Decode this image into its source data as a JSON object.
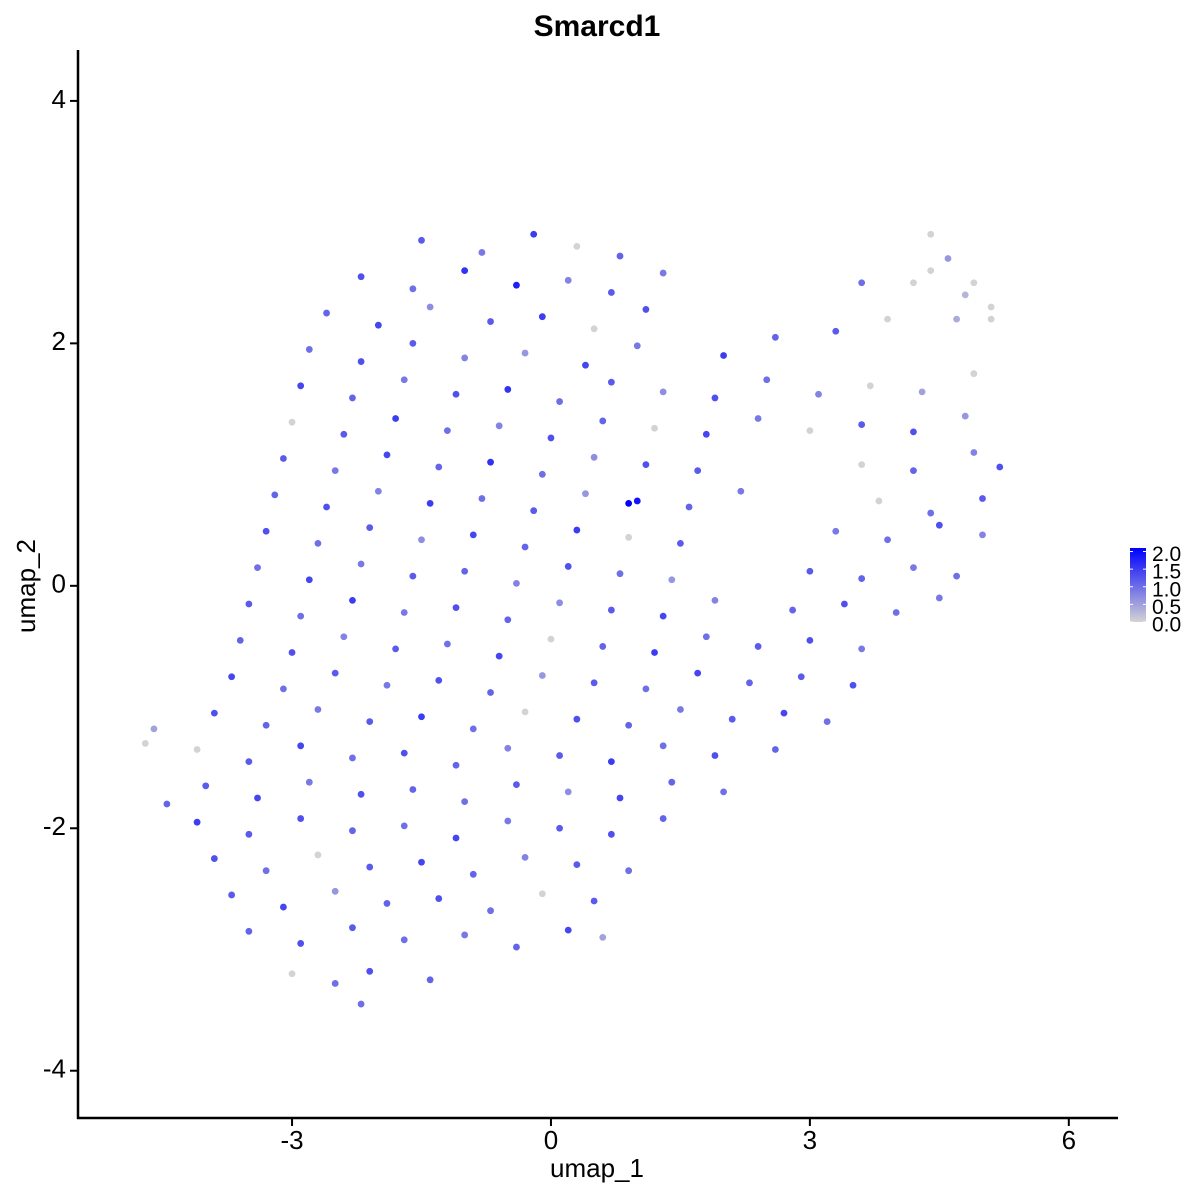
{
  "chart_data": {
    "type": "scatter",
    "title": "Smarcd1",
    "x_label": "umap_1",
    "y_label": "umap_2",
    "xlim": [
      -5.48,
      6.57
    ],
    "ylim": [
      -4.39,
      4.42
    ],
    "xticks": [
      -3,
      0,
      3,
      6
    ],
    "yticks": [
      -4,
      -2,
      0,
      2,
      4
    ],
    "color_range": [
      "#d3d3d3",
      "#0000ff"
    ],
    "colorlim": [
      0,
      2.1
    ],
    "colorbar_ticks": [
      {
        "value": 0,
        "label": "0.0"
      },
      {
        "value": 0.5,
        "label": "0.5"
      },
      {
        "value": 1,
        "label": "1.0"
      },
      {
        "value": 1.5,
        "label": "1.5"
      },
      {
        "value": 2,
        "label": "2.0"
      }
    ],
    "grid": false,
    "x": [
      -1.5,
      -0.8,
      -0.2,
      0.3,
      0.8,
      -2.2,
      -1.6,
      -1.0,
      -0.4,
      0.2,
      0.7,
      1.3,
      -2.6,
      -2.0,
      -1.4,
      -0.7,
      -0.1,
      0.5,
      1.1,
      -2.8,
      -2.2,
      -1.6,
      -1.0,
      -0.3,
      0.4,
      1.0,
      2.0,
      2.6,
      3.3,
      3.9,
      4.4,
      4.8,
      5.1,
      4.4,
      4.6,
      4.9,
      4.2,
      5.1,
      4.7,
      3.6,
      -2.9,
      -2.3,
      -1.7,
      -1.1,
      -0.5,
      0.1,
      0.7,
      1.3,
      1.9,
      2.5,
      3.1,
      3.7,
      4.3,
      4.9,
      -3.0,
      -2.4,
      -1.8,
      -1.2,
      -0.6,
      0.0,
      0.6,
      1.2,
      1.8,
      2.4,
      3.0,
      3.6,
      4.2,
      4.8,
      -3.1,
      -2.5,
      -1.9,
      -1.3,
      -0.7,
      -0.1,
      0.5,
      1.1,
      1.7,
      3.6,
      4.2,
      4.9,
      5.2,
      -3.2,
      -2.6,
      -2.0,
      -1.4,
      -0.8,
      -0.2,
      0.4,
      1.0,
      1.6,
      2.2,
      3.8,
      4.4,
      5.0,
      -3.3,
      -2.7,
      -2.1,
      -1.5,
      -0.9,
      -0.3,
      0.3,
      0.9,
      1.5,
      3.3,
      3.9,
      4.5,
      5.0,
      -3.4,
      -2.8,
      -2.2,
      -1.6,
      -1.0,
      -0.4,
      0.2,
      0.8,
      1.4,
      3.0,
      3.6,
      4.2,
      4.7,
      -3.5,
      -2.9,
      -2.3,
      -1.7,
      -1.1,
      -0.5,
      0.1,
      0.7,
      1.3,
      1.9,
      2.8,
      3.4,
      4.0,
      4.5,
      -3.6,
      -3.0,
      -2.4,
      -1.8,
      -1.2,
      -0.6,
      0.0,
      0.6,
      1.2,
      1.8,
      2.4,
      3.0,
      3.6,
      -3.7,
      -3.1,
      -2.5,
      -1.9,
      -1.3,
      -0.7,
      -0.1,
      0.5,
      1.1,
      1.7,
      2.3,
      2.9,
      3.5,
      -3.9,
      -3.3,
      -2.7,
      -2.1,
      -1.5,
      -0.9,
      -0.3,
      0.3,
      0.9,
      1.5,
      2.1,
      2.7,
      3.2,
      -4.1,
      -3.5,
      -2.9,
      -2.3,
      -1.7,
      -1.1,
      -0.5,
      0.1,
      0.7,
      1.3,
      1.9,
      2.6,
      -4.0,
      -3.4,
      -2.8,
      -2.2,
      -1.6,
      -1.0,
      -0.4,
      0.2,
      0.8,
      1.4,
      2.0,
      -4.1,
      -3.5,
      -2.9,
      -2.3,
      -1.7,
      -1.1,
      -0.5,
      0.1,
      0.7,
      1.3,
      -3.9,
      -3.3,
      -2.7,
      -2.1,
      -1.5,
      -0.9,
      -0.3,
      0.3,
      0.9,
      -3.7,
      -3.1,
      -2.5,
      -1.9,
      -1.3,
      -0.7,
      -0.1,
      0.5,
      -3.5,
      -2.9,
      -2.3,
      -1.7,
      -1.0,
      -0.4,
      0.2,
      0.6,
      -3.0,
      -2.5,
      -2.1,
      -1.4,
      -4.7,
      -4.6,
      -4.45,
      -2.2,
      0.9
    ],
    "values": [
      2.85,
      2.75,
      2.9,
      2.8,
      2.72,
      2.55,
      2.45,
      2.6,
      2.48,
      2.52,
      2.42,
      2.58,
      2.25,
      2.15,
      2.3,
      2.18,
      2.22,
      2.12,
      2.28,
      1.95,
      1.85,
      2.0,
      1.88,
      1.92,
      1.82,
      1.98,
      1.9,
      2.05,
      2.1,
      2.2,
      2.6,
      2.4,
      2.3,
      2.9,
      2.7,
      2.5,
      2.5,
      2.2,
      2.2,
      2.5,
      1.65,
      1.55,
      1.7,
      1.58,
      1.62,
      1.52,
      1.68,
      1.6,
      1.55,
      1.7,
      1.58,
      1.65,
      1.6,
      1.75,
      1.35,
      1.25,
      1.38,
      1.28,
      1.32,
      1.22,
      1.36,
      1.3,
      1.25,
      1.38,
      1.28,
      1.33,
      1.27,
      1.4,
      1.05,
      0.95,
      1.08,
      0.98,
      1.02,
      0.92,
      1.06,
      1.0,
      0.95,
      1.0,
      0.95,
      1.1,
      0.98,
      0.75,
      0.65,
      0.78,
      0.68,
      0.72,
      0.62,
      0.76,
      0.7,
      0.65,
      0.78,
      0.7,
      0.6,
      0.72,
      0.45,
      0.35,
      0.48,
      0.38,
      0.42,
      0.32,
      0.46,
      0.4,
      0.35,
      0.45,
      0.38,
      0.5,
      0.42,
      0.15,
      0.05,
      0.18,
      0.08,
      0.12,
      0.02,
      0.16,
      0.1,
      0.05,
      0.12,
      0.06,
      0.15,
      0.08,
      -0.15,
      -0.25,
      -0.12,
      -0.22,
      -0.18,
      -0.28,
      -0.14,
      -0.2,
      -0.25,
      -0.12,
      -0.2,
      -0.15,
      -0.22,
      -0.1,
      -0.45,
      -0.55,
      -0.42,
      -0.52,
      -0.48,
      -0.58,
      -0.44,
      -0.5,
      -0.55,
      -0.42,
      -0.5,
      -0.45,
      -0.52,
      -0.75,
      -0.85,
      -0.72,
      -0.82,
      -0.78,
      -0.88,
      -0.74,
      -0.8,
      -0.85,
      -0.72,
      -0.8,
      -0.75,
      -0.82,
      -1.05,
      -1.15,
      -1.02,
      -1.12,
      -1.08,
      -1.18,
      -1.04,
      -1.1,
      -1.15,
      -1.02,
      -1.1,
      -1.05,
      -1.12,
      -1.35,
      -1.45,
      -1.32,
      -1.42,
      -1.38,
      -1.48,
      -1.34,
      -1.4,
      -1.45,
      -1.32,
      -1.4,
      -1.35,
      -1.65,
      -1.75,
      -1.62,
      -1.72,
      -1.68,
      -1.78,
      -1.64,
      -1.7,
      -1.75,
      -1.62,
      -1.7,
      -1.95,
      -2.05,
      -1.92,
      -2.02,
      -1.98,
      -2.08,
      -1.94,
      -2.0,
      -2.05,
      -1.92,
      -2.25,
      -2.35,
      -2.22,
      -2.32,
      -2.28,
      -2.38,
      -2.24,
      -2.3,
      -2.35,
      -2.55,
      -2.65,
      -2.52,
      -2.62,
      -2.58,
      -2.68,
      -2.54,
      -2.6,
      -2.85,
      -2.95,
      -2.82,
      -2.92,
      -2.88,
      -2.98,
      -2.84,
      -2.9,
      -3.2,
      -3.28,
      -3.18,
      -3.25,
      -1.3,
      -1.18,
      -1.8,
      -3.45,
      0.68
    ],
    "expression": [
      1.2,
      0.9,
      1.5,
      0,
      1.1,
      1.3,
      1.0,
      1.6,
      1.8,
      0.8,
      1.2,
      0.9,
      1.1,
      1.4,
      0.7,
      1.2,
      1.5,
      0,
      1.3,
      1.0,
      1.3,
      1.2,
      0.8,
      0.6,
      1.4,
      0.9,
      1.5,
      1.1,
      1.2,
      0,
      0,
      0.3,
      0,
      0,
      0.6,
      0,
      0,
      0,
      0.4,
      1.0,
      1.4,
      1.1,
      0.9,
      1.3,
      1.6,
      1.0,
      1.2,
      0.7,
      1.3,
      1.0,
      0.8,
      0,
      0.5,
      0,
      0,
      1.2,
      1.5,
      1.0,
      0.8,
      1.3,
      1.1,
      0,
      1.4,
      0.9,
      0,
      1.2,
      1.3,
      0.6,
      1.2,
      0.9,
      1.4,
      1.1,
      1.6,
      1.0,
      0.7,
      1.3,
      1.2,
      0,
      1.1,
      0.8,
      1.3,
      1.1,
      1.3,
      0.8,
      1.5,
      1.0,
      1.2,
      0.6,
      1.9,
      1.1,
      0.9,
      0,
      1.0,
      1.2,
      1.3,
      1.0,
      1.2,
      0.7,
      1.4,
      1.1,
      1.5,
      0,
      1.2,
      0.9,
      1.0,
      1.3,
      0.8,
      1.0,
      1.4,
      0.9,
      1.2,
      1.1,
      0.8,
      1.3,
      1.0,
      0.6,
      1.2,
      1.1,
      0.9,
      1.0,
      1.2,
      1.0,
      1.5,
      0.9,
      1.3,
      1.1,
      0.7,
      1.2,
      1.4,
      0.8,
      1.1,
      1.3,
      1.0,
      0.9,
      1.1,
      1.3,
      0.8,
      1.2,
      1.0,
      1.4,
      0,
      1.1,
      1.5,
      1.0,
      1.2,
      1.3,
      0.9,
      1.4,
      1.0,
      1.2,
      0.9,
      1.3,
      1.1,
      0.6,
      1.2,
      1.0,
      1.4,
      1.1,
      1.2,
      1.3,
      1.3,
      1.1,
      0.9,
      1.2,
      1.5,
      1.0,
      0,
      1.3,
      1.1,
      0.9,
      1.2,
      1.4,
      1.0,
      0,
      1.2,
      1.4,
      1.0,
      1.3,
      1.1,
      0.8,
      1.2,
      1.5,
      1.0,
      1.3,
      1.1,
      1.2,
      1.4,
      0.9,
      1.3,
      1.1,
      1.0,
      1.2,
      0.7,
      1.4,
      1.1,
      1.0,
      1.5,
      1.2,
      1.3,
      1.1,
      1.0,
      1.4,
      0.9,
      1.2,
      1.3,
      1.1,
      1.3,
      1.0,
      0,
      1.2,
      1.4,
      1.1,
      0.8,
      1.2,
      1.0,
      1.2,
      1.4,
      0.6,
      1.1,
      1.3,
      1.0,
      0,
      1.2,
      1.1,
      1.3,
      1.2,
      1.0,
      0.9,
      1.1,
      1.4,
      0.5,
      0,
      1.0,
      1.3,
      1.1,
      0,
      0.5,
      1.1,
      1.0,
      2.1
    ]
  }
}
